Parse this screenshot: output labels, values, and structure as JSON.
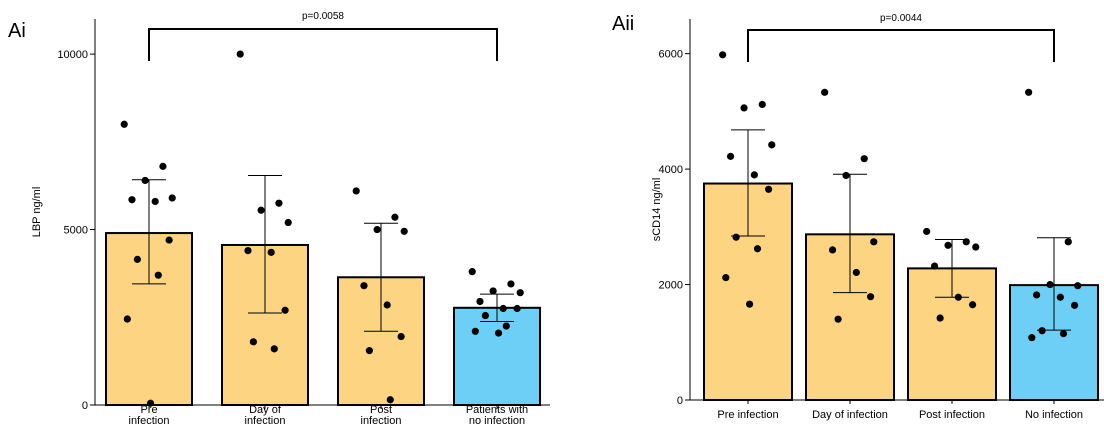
{
  "chart_data": [
    {
      "type": "bar",
      "panel_label": "Ai",
      "ylabel": "LBP ng/ml",
      "ylim": [
        0,
        11000
      ],
      "yticks": [
        "0",
        "5000",
        "10000"
      ],
      "ytick_values": [
        0,
        5000,
        10000
      ],
      "categories": [
        [
          "Pre",
          "infection"
        ],
        [
          "Day of",
          "infection"
        ],
        [
          "Post",
          "infection"
        ],
        [
          "Patients with",
          "no infection"
        ]
      ],
      "means": [
        4900,
        4560,
        3640,
        2770
      ],
      "error_low": [
        3450,
        2620,
        2100,
        2380
      ],
      "error_high": [
        6420,
        6540,
        5180,
        3160
      ],
      "colors": [
        "#FDD582",
        "#FDD582",
        "#FDD582",
        "#6ECFF6"
      ],
      "points": [
        [
          8000,
          6800,
          6400,
          5900,
          5850,
          5800,
          4700,
          4150,
          3700,
          2450,
          50
        ],
        [
          10000,
          5750,
          5550,
          5200,
          4400,
          4350,
          2700,
          1800,
          1600
        ],
        [
          6100,
          5350,
          5000,
          4950,
          3400,
          2850,
          1950,
          1550,
          150
        ],
        [
          3800,
          3450,
          3250,
          3200,
          2950,
          2750,
          2750,
          2550,
          2250,
          2100,
          2050
        ]
      ],
      "significance": {
        "from": 0,
        "to": 3,
        "label": "p=0.0058"
      }
    },
    {
      "type": "bar",
      "panel_label": "Aii",
      "ylabel": "sCD14 ng/ml",
      "ylim": [
        0,
        6600
      ],
      "yticks": [
        "0",
        "2000",
        "4000",
        "6000"
      ],
      "ytick_values": [
        0,
        2000,
        4000,
        6000
      ],
      "categories": [
        [
          "Pre infection"
        ],
        [
          "Day of infection"
        ],
        [
          "Post infection"
        ],
        [
          "No infection"
        ]
      ],
      "means": [
        3750,
        2870,
        2280,
        1990
      ],
      "error_low": [
        2840,
        1860,
        1780,
        1210
      ],
      "error_high": [
        4680,
        3910,
        2780,
        2810
      ],
      "colors": [
        "#FDD582",
        "#FDD582",
        "#FDD582",
        "#6ECFF6"
      ],
      "points": [
        [
          5980,
          5120,
          5060,
          4420,
          4220,
          3900,
          3650,
          2820,
          2620,
          2120,
          1660
        ],
        [
          5330,
          4180,
          3890,
          2740,
          2600,
          2210,
          1790,
          1400
        ],
        [
          2920,
          2740,
          2680,
          2650,
          2320,
          1780,
          1650,
          1420
        ],
        [
          5330,
          2740,
          2000,
          1980,
          1820,
          1780,
          1640,
          1200,
          1150,
          1080
        ]
      ],
      "significance": {
        "from": 0,
        "to": 3,
        "label": "p=0.0044"
      }
    }
  ]
}
